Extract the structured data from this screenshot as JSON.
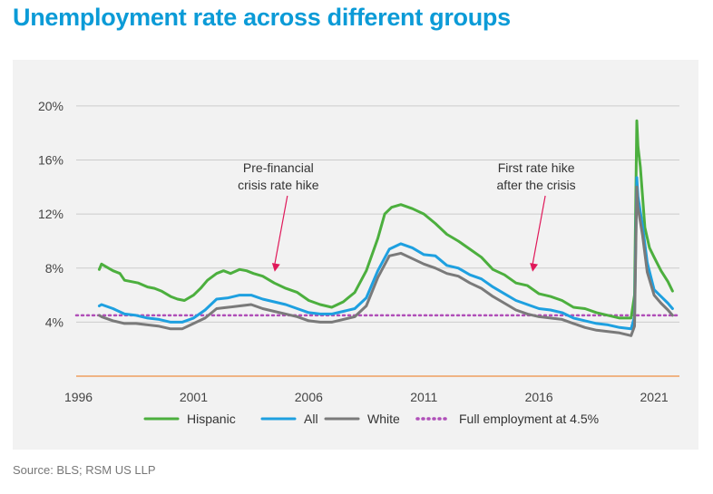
{
  "header": {
    "title": "Unemployment rate across different groups"
  },
  "footer": {
    "source": "Source: BLS; RSM US LLP"
  },
  "colors": {
    "hispanic": "#4caf3e",
    "all": "#1ea0e0",
    "white": "#7a7a7a",
    "full_employment": "#b04fb8",
    "axis": "#f0a060",
    "grid": "#cccccc",
    "title": "#0b9bd7"
  },
  "chart_data": {
    "type": "line",
    "title": "Unemployment rate across different groups",
    "xlabel": "",
    "ylabel": "",
    "xlim": [
      1995.9,
      2022.1
    ],
    "ylim": [
      0,
      21
    ],
    "grid": "horizontal",
    "legend_position": "bottom",
    "x_ticks": [
      {
        "value": 1996,
        "label": "1996"
      },
      {
        "value": 2001,
        "label": "2001"
      },
      {
        "value": 2006,
        "label": "2006"
      },
      {
        "value": 2011,
        "label": "2011"
      },
      {
        "value": 2016,
        "label": "2016"
      },
      {
        "value": 2021,
        "label": "2021"
      }
    ],
    "y_ticks": [
      {
        "value": 4,
        "label": "4%"
      },
      {
        "value": 8,
        "label": "8%"
      },
      {
        "value": 12,
        "label": "12%"
      },
      {
        "value": 16,
        "label": "16%"
      },
      {
        "value": 20,
        "label": "20%"
      }
    ],
    "reference_line": {
      "value": 4.5,
      "name": "Full employment at 4.5%"
    },
    "annotations": [
      {
        "lines": [
          "Pre-financial",
          "crisis rate hike"
        ],
        "x": 2004.6,
        "y": 7.6
      },
      {
        "lines": [
          "First rate hike",
          "after the crisis"
        ],
        "x": 2015.8,
        "y": 7.6
      }
    ],
    "series": [
      {
        "name": "Hispanic",
        "x": [
          1996.9,
          1997.0,
          1997.2,
          1997.5,
          1997.8,
          1998.0,
          1998.3,
          1998.6,
          1999.0,
          1999.3,
          1999.6,
          2000.0,
          2000.3,
          2000.6,
          2001.0,
          2001.3,
          2001.6,
          2002.0,
          2002.3,
          2002.6,
          2003.0,
          2003.3,
          2003.6,
          2004.0,
          2004.5,
          2005.0,
          2005.5,
          2006.0,
          2006.5,
          2007.0,
          2007.5,
          2008.0,
          2008.5,
          2009.0,
          2009.3,
          2009.6,
          2010.0,
          2010.5,
          2011.0,
          2011.5,
          2012.0,
          2012.5,
          2013.0,
          2013.5,
          2014.0,
          2014.5,
          2015.0,
          2015.5,
          2016.0,
          2016.5,
          2017.0,
          2017.5,
          2018.0,
          2018.5,
          2019.0,
          2019.5,
          2020.0,
          2020.15,
          2020.25,
          2020.3,
          2020.4,
          2020.6,
          2020.8,
          2021.0,
          2021.3,
          2021.6,
          2021.8
        ],
        "values": [
          7.9,
          8.3,
          8.1,
          7.8,
          7.6,
          7.1,
          7.0,
          6.9,
          6.6,
          6.5,
          6.3,
          5.9,
          5.7,
          5.6,
          6.0,
          6.5,
          7.1,
          7.6,
          7.8,
          7.6,
          7.9,
          7.8,
          7.6,
          7.4,
          6.9,
          6.5,
          6.2,
          5.6,
          5.3,
          5.1,
          5.5,
          6.2,
          7.8,
          10.2,
          12.0,
          12.5,
          12.7,
          12.4,
          12.0,
          11.3,
          10.5,
          10.0,
          9.4,
          8.8,
          7.9,
          7.5,
          6.9,
          6.7,
          6.1,
          5.9,
          5.6,
          5.1,
          5.0,
          4.7,
          4.5,
          4.3,
          4.3,
          6.0,
          18.9,
          17.0,
          15.5,
          11.0,
          9.5,
          8.8,
          7.8,
          7.0,
          6.3
        ]
      },
      {
        "name": "All",
        "x": [
          1996.9,
          1997.0,
          1997.5,
          1998.0,
          1998.5,
          1999.0,
          1999.5,
          2000.0,
          2000.5,
          2001.0,
          2001.5,
          2002.0,
          2002.5,
          2003.0,
          2003.5,
          2004.0,
          2004.5,
          2005.0,
          2005.5,
          2006.0,
          2006.5,
          2007.0,
          2007.5,
          2008.0,
          2008.5,
          2009.0,
          2009.5,
          2010.0,
          2010.5,
          2011.0,
          2011.5,
          2012.0,
          2012.5,
          2013.0,
          2013.5,
          2014.0,
          2014.5,
          2015.0,
          2015.5,
          2016.0,
          2016.5,
          2017.0,
          2017.5,
          2018.0,
          2018.5,
          2019.0,
          2019.5,
          2020.0,
          2020.15,
          2020.25,
          2020.3,
          2020.5,
          2020.7,
          2021.0,
          2021.3,
          2021.6,
          2021.8
        ],
        "values": [
          5.2,
          5.3,
          5.0,
          4.6,
          4.5,
          4.3,
          4.2,
          4.0,
          4.0,
          4.3,
          4.9,
          5.7,
          5.8,
          6.0,
          6.0,
          5.7,
          5.5,
          5.3,
          5.0,
          4.7,
          4.6,
          4.6,
          4.8,
          5.0,
          5.8,
          7.8,
          9.4,
          9.8,
          9.5,
          9.0,
          8.9,
          8.2,
          8.0,
          7.5,
          7.2,
          6.6,
          6.1,
          5.6,
          5.3,
          5.0,
          4.9,
          4.7,
          4.3,
          4.1,
          3.9,
          3.8,
          3.6,
          3.5,
          4.4,
          14.7,
          13.3,
          11.1,
          8.4,
          6.4,
          5.9,
          5.4,
          5.0
        ]
      },
      {
        "name": "White",
        "x": [
          1996.9,
          1997.0,
          1997.5,
          1998.0,
          1998.5,
          1999.0,
          1999.5,
          2000.0,
          2000.5,
          2001.0,
          2001.5,
          2002.0,
          2002.5,
          2003.0,
          2003.5,
          2004.0,
          2004.5,
          2005.0,
          2005.5,
          2006.0,
          2006.5,
          2007.0,
          2007.5,
          2008.0,
          2008.5,
          2009.0,
          2009.5,
          2010.0,
          2010.5,
          2011.0,
          2011.5,
          2012.0,
          2012.5,
          2013.0,
          2013.5,
          2014.0,
          2014.5,
          2015.0,
          2015.5,
          2016.0,
          2016.5,
          2017.0,
          2017.5,
          2018.0,
          2018.5,
          2019.0,
          2019.5,
          2020.0,
          2020.15,
          2020.25,
          2020.3,
          2020.5,
          2020.7,
          2021.0,
          2021.3,
          2021.6,
          2021.8
        ],
        "values": [
          4.5,
          4.4,
          4.1,
          3.9,
          3.9,
          3.8,
          3.7,
          3.5,
          3.5,
          3.9,
          4.3,
          5.0,
          5.1,
          5.2,
          5.3,
          5.0,
          4.8,
          4.6,
          4.4,
          4.1,
          4.0,
          4.0,
          4.2,
          4.4,
          5.2,
          7.3,
          8.9,
          9.1,
          8.7,
          8.3,
          8.0,
          7.6,
          7.4,
          6.9,
          6.5,
          5.9,
          5.4,
          4.9,
          4.6,
          4.4,
          4.3,
          4.2,
          3.9,
          3.6,
          3.4,
          3.3,
          3.2,
          3.0,
          3.7,
          14.0,
          12.5,
          10.4,
          7.7,
          6.0,
          5.4,
          4.9,
          4.5
        ]
      }
    ]
  }
}
